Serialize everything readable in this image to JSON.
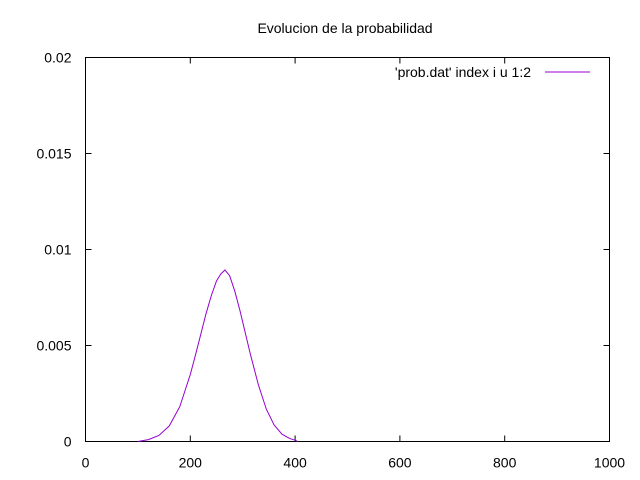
{
  "chart_data": {
    "type": "line",
    "title": "Evolucion de la probabilidad",
    "xlabel": "",
    "ylabel": "",
    "xlim": [
      0,
      1000
    ],
    "ylim": [
      0,
      0.02
    ],
    "x_ticks": [
      0,
      200,
      400,
      600,
      800,
      1000
    ],
    "x_tick_labels": [
      "0",
      "200",
      "400",
      "600",
      "800",
      "1000"
    ],
    "y_ticks": [
      0,
      0.005,
      0.01,
      0.015,
      0.02
    ],
    "y_tick_labels": [
      "0",
      "0.005",
      "0.01",
      "0.015",
      "0.02"
    ],
    "grid": false,
    "legend_position": "top-right",
    "series": [
      {
        "name": "'prob.dat' index i u 1:2",
        "color": "#9400d3",
        "x": [
          100,
          120,
          140,
          160,
          180,
          200,
          210,
          220,
          230,
          240,
          250,
          258,
          266,
          275,
          285,
          295,
          305,
          315,
          330,
          345,
          360,
          375,
          390,
          400,
          405
        ],
        "y": [
          0.0,
          0.0001,
          0.00031,
          0.00081,
          0.00182,
          0.00349,
          0.00451,
          0.00559,
          0.00665,
          0.0076,
          0.00836,
          0.00872,
          0.00893,
          0.00864,
          0.00783,
          0.00679,
          0.00565,
          0.0045,
          0.00295,
          0.00169,
          0.00086,
          0.00038,
          0.00015,
          7e-05,
          0.0
        ]
      }
    ]
  }
}
